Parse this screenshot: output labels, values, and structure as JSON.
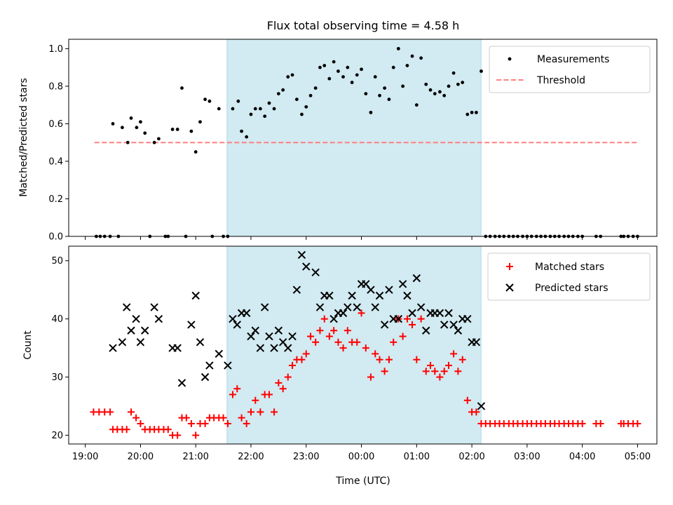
{
  "chart_data": [
    {
      "type": "scatter",
      "title": "Flux total observing time = 4.58 h",
      "xlabel": "",
      "ylabel": "Matched/Predicted stars",
      "xlim": [
        "19:00",
        "05:00"
      ],
      "xlim_hours": [
        18.7,
        29.35
      ],
      "ylim": [
        0,
        1.05
      ],
      "yticks": [
        "0.0",
        "0.2",
        "0.4",
        "0.6",
        "0.8",
        "1.0"
      ],
      "highlight": {
        "start": "21:34",
        "end": "02:10",
        "color": "#add8e6"
      },
      "legend_position": "top-right",
      "legend": {
        "measurements": "Measurements",
        "threshold": "Threshold"
      },
      "threshold": {
        "value": 0.5,
        "x_start": "19:10",
        "x_end": "05:00",
        "color": "#ff8080"
      },
      "measurements_points": [
        [
          19.2,
          0
        ],
        [
          19.27,
          0
        ],
        [
          19.35,
          0
        ],
        [
          19.45,
          0
        ],
        [
          19.5,
          0.6
        ],
        [
          19.6,
          0
        ],
        [
          19.67,
          0.58
        ],
        [
          19.77,
          0.5
        ],
        [
          19.83,
          0.63
        ],
        [
          19.93,
          0.58
        ],
        [
          20.0,
          0.61
        ],
        [
          20.08,
          0.55
        ],
        [
          20.17,
          0
        ],
        [
          20.25,
          0.5
        ],
        [
          20.33,
          0.52
        ],
        [
          20.45,
          0
        ],
        [
          20.5,
          0
        ],
        [
          20.58,
          0.57
        ],
        [
          20.67,
          0.57
        ],
        [
          20.75,
          0.79
        ],
        [
          20.82,
          0
        ],
        [
          20.92,
          0.56
        ],
        [
          21.0,
          0.45
        ],
        [
          21.08,
          0.61
        ],
        [
          21.17,
          0.73
        ],
        [
          21.25,
          0.72
        ],
        [
          21.3,
          0
        ],
        [
          21.42,
          0.68
        ],
        [
          21.5,
          0
        ],
        [
          21.58,
          0
        ],
        [
          21.67,
          0.68
        ],
        [
          21.77,
          0.72
        ],
        [
          21.83,
          0.56
        ],
        [
          21.92,
          0.53
        ],
        [
          22.0,
          0.65
        ],
        [
          22.08,
          0.68
        ],
        [
          22.17,
          0.68
        ],
        [
          22.25,
          0.64
        ],
        [
          22.33,
          0.71
        ],
        [
          22.42,
          0.68
        ],
        [
          22.5,
          0.76
        ],
        [
          22.58,
          0.78
        ],
        [
          22.67,
          0.85
        ],
        [
          22.75,
          0.86
        ],
        [
          22.83,
          0.73
        ],
        [
          22.92,
          0.65
        ],
        [
          23.0,
          0.69
        ],
        [
          23.08,
          0.75
        ],
        [
          23.17,
          0.79
        ],
        [
          23.25,
          0.9
        ],
        [
          23.33,
          0.91
        ],
        [
          23.42,
          0.84
        ],
        [
          23.5,
          0.93
        ],
        [
          23.58,
          0.88
        ],
        [
          23.67,
          0.85
        ],
        [
          23.75,
          0.9
        ],
        [
          23.83,
          0.82
        ],
        [
          23.92,
          0.86
        ],
        [
          24.0,
          0.89
        ],
        [
          24.08,
          0.76
        ],
        [
          24.17,
          0.66
        ],
        [
          24.25,
          0.85
        ],
        [
          24.33,
          0.75
        ],
        [
          24.42,
          0.79
        ],
        [
          24.5,
          0.73
        ],
        [
          24.58,
          0.9
        ],
        [
          24.67,
          1.0
        ],
        [
          24.75,
          0.8
        ],
        [
          24.83,
          0.91
        ],
        [
          24.92,
          0.96
        ],
        [
          25.0,
          0.7
        ],
        [
          25.08,
          0.95
        ],
        [
          25.17,
          0.81
        ],
        [
          25.25,
          0.78
        ],
        [
          25.33,
          0.76
        ],
        [
          25.42,
          0.77
        ],
        [
          25.5,
          0.75
        ],
        [
          25.58,
          0.8
        ],
        [
          25.67,
          0.87
        ],
        [
          25.75,
          0.81
        ],
        [
          25.83,
          0.82
        ],
        [
          25.92,
          0.65
        ],
        [
          26.0,
          0.66
        ],
        [
          26.08,
          0.66
        ],
        [
          26.17,
          0.88
        ],
        [
          26.25,
          0
        ],
        [
          26.33,
          0
        ],
        [
          26.42,
          0
        ],
        [
          26.5,
          0
        ],
        [
          26.58,
          0
        ],
        [
          26.67,
          0
        ],
        [
          26.75,
          0
        ],
        [
          26.83,
          0
        ],
        [
          26.92,
          0
        ],
        [
          27.0,
          0
        ],
        [
          27.08,
          0
        ],
        [
          27.17,
          0
        ],
        [
          27.25,
          0
        ],
        [
          27.33,
          0
        ],
        [
          27.42,
          0
        ],
        [
          27.5,
          0
        ],
        [
          27.58,
          0
        ],
        [
          27.67,
          0
        ],
        [
          27.75,
          0
        ],
        [
          27.83,
          0
        ],
        [
          27.92,
          0
        ],
        [
          28.0,
          0
        ],
        [
          28.25,
          0
        ],
        [
          28.33,
          0
        ],
        [
          28.7,
          0
        ],
        [
          28.75,
          0
        ],
        [
          28.83,
          0
        ],
        [
          28.92,
          0
        ],
        [
          29.0,
          0
        ]
      ]
    },
    {
      "type": "scatter",
      "title": "",
      "xlabel": "Time (UTC)",
      "ylabel": "Count",
      "xlim": [
        "19:00",
        "05:00"
      ],
      "xlim_hours": [
        18.7,
        29.35
      ],
      "ylim": [
        18.5,
        52.5
      ],
      "xticks": [
        "19:00",
        "20:00",
        "21:00",
        "22:00",
        "23:00",
        "00:00",
        "01:00",
        "02:00",
        "03:00",
        "04:00",
        "05:00"
      ],
      "yticks": [
        "20",
        "30",
        "40",
        "50"
      ],
      "highlight": {
        "start": "21:34",
        "end": "02:10",
        "color": "#add8e6"
      },
      "legend_position": "top-right",
      "legend": {
        "matched": "Matched stars",
        "predicted": "Predicted stars"
      },
      "matched_points": [
        [
          19.15,
          24
        ],
        [
          19.25,
          24
        ],
        [
          19.35,
          24
        ],
        [
          19.45,
          24
        ],
        [
          19.5,
          21
        ],
        [
          19.58,
          21
        ],
        [
          19.67,
          21
        ],
        [
          19.75,
          21
        ],
        [
          19.83,
          24
        ],
        [
          19.92,
          23
        ],
        [
          20.0,
          22
        ],
        [
          20.08,
          21
        ],
        [
          20.17,
          21
        ],
        [
          20.25,
          21
        ],
        [
          20.33,
          21
        ],
        [
          20.42,
          21
        ],
        [
          20.5,
          21
        ],
        [
          20.58,
          20
        ],
        [
          20.67,
          20
        ],
        [
          20.75,
          23
        ],
        [
          20.83,
          23
        ],
        [
          20.92,
          22
        ],
        [
          21.0,
          20
        ],
        [
          21.08,
          22
        ],
        [
          21.17,
          22
        ],
        [
          21.25,
          23
        ],
        [
          21.33,
          23
        ],
        [
          21.42,
          23
        ],
        [
          21.5,
          23
        ],
        [
          21.58,
          22
        ],
        [
          21.67,
          27
        ],
        [
          21.75,
          28
        ],
        [
          21.83,
          23
        ],
        [
          21.92,
          22
        ],
        [
          22.0,
          24
        ],
        [
          22.08,
          26
        ],
        [
          22.17,
          24
        ],
        [
          22.25,
          27
        ],
        [
          22.33,
          27
        ],
        [
          22.42,
          24
        ],
        [
          22.5,
          29
        ],
        [
          22.58,
          28
        ],
        [
          22.67,
          30
        ],
        [
          22.75,
          32
        ],
        [
          22.83,
          33
        ],
        [
          22.92,
          33
        ],
        [
          23.0,
          34
        ],
        [
          23.08,
          37
        ],
        [
          23.17,
          36
        ],
        [
          23.25,
          38
        ],
        [
          23.33,
          40
        ],
        [
          23.42,
          37
        ],
        [
          23.5,
          38
        ],
        [
          23.58,
          36
        ],
        [
          23.67,
          35
        ],
        [
          23.75,
          38
        ],
        [
          23.83,
          36
        ],
        [
          23.92,
          36
        ],
        [
          24.0,
          41
        ],
        [
          24.08,
          35
        ],
        [
          24.17,
          30
        ],
        [
          24.25,
          34
        ],
        [
          24.33,
          33
        ],
        [
          24.42,
          31
        ],
        [
          24.5,
          33
        ],
        [
          24.58,
          36
        ],
        [
          24.67,
          40
        ],
        [
          24.75,
          37
        ],
        [
          24.83,
          40
        ],
        [
          24.92,
          39
        ],
        [
          25.0,
          33
        ],
        [
          25.08,
          40
        ],
        [
          25.17,
          31
        ],
        [
          25.25,
          32
        ],
        [
          25.33,
          31
        ],
        [
          25.42,
          30
        ],
        [
          25.5,
          31
        ],
        [
          25.58,
          32
        ],
        [
          25.67,
          34
        ],
        [
          25.75,
          31
        ],
        [
          25.83,
          33
        ],
        [
          25.92,
          26
        ],
        [
          26.0,
          24
        ],
        [
          26.08,
          24
        ],
        [
          26.17,
          22
        ],
        [
          26.25,
          22
        ],
        [
          26.33,
          22
        ],
        [
          26.42,
          22
        ],
        [
          26.5,
          22
        ],
        [
          26.58,
          22
        ],
        [
          26.67,
          22
        ],
        [
          26.75,
          22
        ],
        [
          26.83,
          22
        ],
        [
          26.92,
          22
        ],
        [
          27.0,
          22
        ],
        [
          27.08,
          22
        ],
        [
          27.17,
          22
        ],
        [
          27.25,
          22
        ],
        [
          27.33,
          22
        ],
        [
          27.42,
          22
        ],
        [
          27.5,
          22
        ],
        [
          27.58,
          22
        ],
        [
          27.67,
          22
        ],
        [
          27.75,
          22
        ],
        [
          27.83,
          22
        ],
        [
          27.92,
          22
        ],
        [
          28.0,
          22
        ],
        [
          28.25,
          22
        ],
        [
          28.33,
          22
        ],
        [
          28.7,
          22
        ],
        [
          28.75,
          22
        ],
        [
          28.83,
          22
        ],
        [
          28.92,
          22
        ],
        [
          29.0,
          22
        ]
      ],
      "predicted_points": [
        [
          19.5,
          35
        ],
        [
          19.67,
          36
        ],
        [
          19.75,
          42
        ],
        [
          19.83,
          38
        ],
        [
          19.92,
          40
        ],
        [
          20.0,
          36
        ],
        [
          20.08,
          38
        ],
        [
          20.25,
          42
        ],
        [
          20.33,
          40
        ],
        [
          20.58,
          35
        ],
        [
          20.67,
          35
        ],
        [
          20.75,
          29
        ],
        [
          20.92,
          39
        ],
        [
          21.0,
          44
        ],
        [
          21.08,
          36
        ],
        [
          21.17,
          30
        ],
        [
          21.25,
          32
        ],
        [
          21.42,
          34
        ],
        [
          21.58,
          32
        ],
        [
          21.67,
          40
        ],
        [
          21.75,
          39
        ],
        [
          21.83,
          41
        ],
        [
          21.92,
          41
        ],
        [
          22.0,
          37
        ],
        [
          22.08,
          38
        ],
        [
          22.17,
          35
        ],
        [
          22.25,
          42
        ],
        [
          22.33,
          37
        ],
        [
          22.42,
          35
        ],
        [
          22.5,
          38
        ],
        [
          22.58,
          36
        ],
        [
          22.67,
          35
        ],
        [
          22.75,
          37
        ],
        [
          22.83,
          45
        ],
        [
          22.92,
          51
        ],
        [
          23.0,
          49
        ],
        [
          23.17,
          48
        ],
        [
          23.25,
          42
        ],
        [
          23.33,
          44
        ],
        [
          23.42,
          44
        ],
        [
          23.5,
          40
        ],
        [
          23.58,
          41
        ],
        [
          23.67,
          41
        ],
        [
          23.75,
          42
        ],
        [
          23.83,
          44
        ],
        [
          23.92,
          42
        ],
        [
          24.0,
          46
        ],
        [
          24.08,
          46
        ],
        [
          24.17,
          45
        ],
        [
          24.25,
          42
        ],
        [
          24.33,
          44
        ],
        [
          24.42,
          39
        ],
        [
          24.5,
          45
        ],
        [
          24.58,
          40
        ],
        [
          24.67,
          40
        ],
        [
          24.75,
          46
        ],
        [
          24.83,
          44
        ],
        [
          24.92,
          41
        ],
        [
          25.0,
          47
        ],
        [
          25.08,
          42
        ],
        [
          25.17,
          38
        ],
        [
          25.25,
          41
        ],
        [
          25.33,
          41
        ],
        [
          25.42,
          41
        ],
        [
          25.5,
          39
        ],
        [
          25.58,
          41
        ],
        [
          25.67,
          39
        ],
        [
          25.75,
          38
        ],
        [
          25.83,
          40
        ],
        [
          25.92,
          40
        ],
        [
          26.0,
          36
        ],
        [
          26.08,
          36
        ],
        [
          26.17,
          25
        ]
      ]
    }
  ]
}
